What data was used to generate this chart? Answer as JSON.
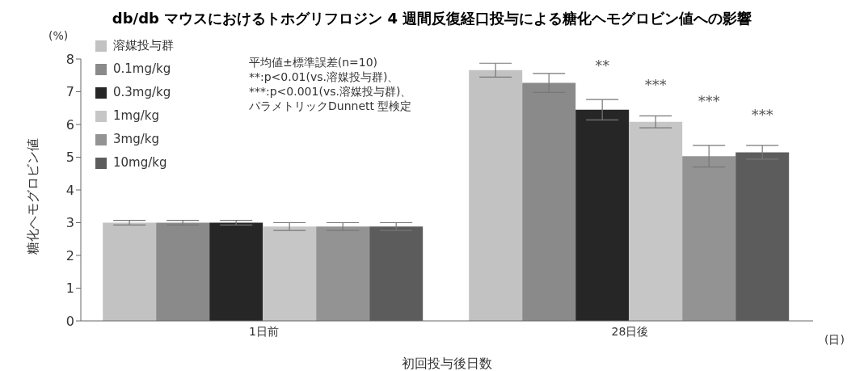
{
  "chart_data": {
    "type": "bar",
    "title": "db/db マウスにおけるトホグリフロジン 4 週間反復経口投与による糖化ヘモグロビン値への影響",
    "xlabel": "初回投与後日数",
    "ylabel": "糖化ヘモグロビン値",
    "categories": [
      "1日前",
      "28日後"
    ],
    "series": [
      {
        "name": "溶媒投与群",
        "color": "#c2c2c2",
        "values": [
          3.0,
          7.66
        ],
        "errors": [
          0.07,
          0.21
        ]
      },
      {
        "name": "0.1mg/kg",
        "color": "#8a8a8a",
        "values": [
          3.0,
          7.27
        ],
        "errors": [
          0.07,
          0.29
        ]
      },
      {
        "name": "0.3mg/kg",
        "color": "#262626",
        "values": [
          3.0,
          6.45
        ],
        "errors": [
          0.07,
          0.31
        ]
      },
      {
        "name": "1mg/kg",
        "color": "#c6c6c6",
        "values": [
          2.88,
          6.08
        ],
        "errors": [
          0.12,
          0.18
        ]
      },
      {
        "name": "3mg/kg",
        "color": "#939393",
        "values": [
          2.88,
          5.03
        ],
        "errors": [
          0.12,
          0.33
        ]
      },
      {
        "name": "10mg/kg",
        "color": "#5c5c5c",
        "values": [
          2.88,
          5.15
        ],
        "errors": [
          0.12,
          0.21
        ]
      }
    ],
    "ylim": [
      0,
      8
    ],
    "yticks": [
      0,
      1,
      2,
      3,
      4,
      5,
      6,
      7,
      8
    ],
    "legend": "top left",
    "annotations": [
      "(%)",
      "(日)",
      "平均値±標準誤差(n=10)",
      "**:p<0.01(vs.溶媒投与群)、",
      "***:p<0.001(vs.溶媒投与群)、",
      "パラメトリックDunnett 型検定",
      "**",
      "***",
      "***",
      "***"
    ]
  }
}
